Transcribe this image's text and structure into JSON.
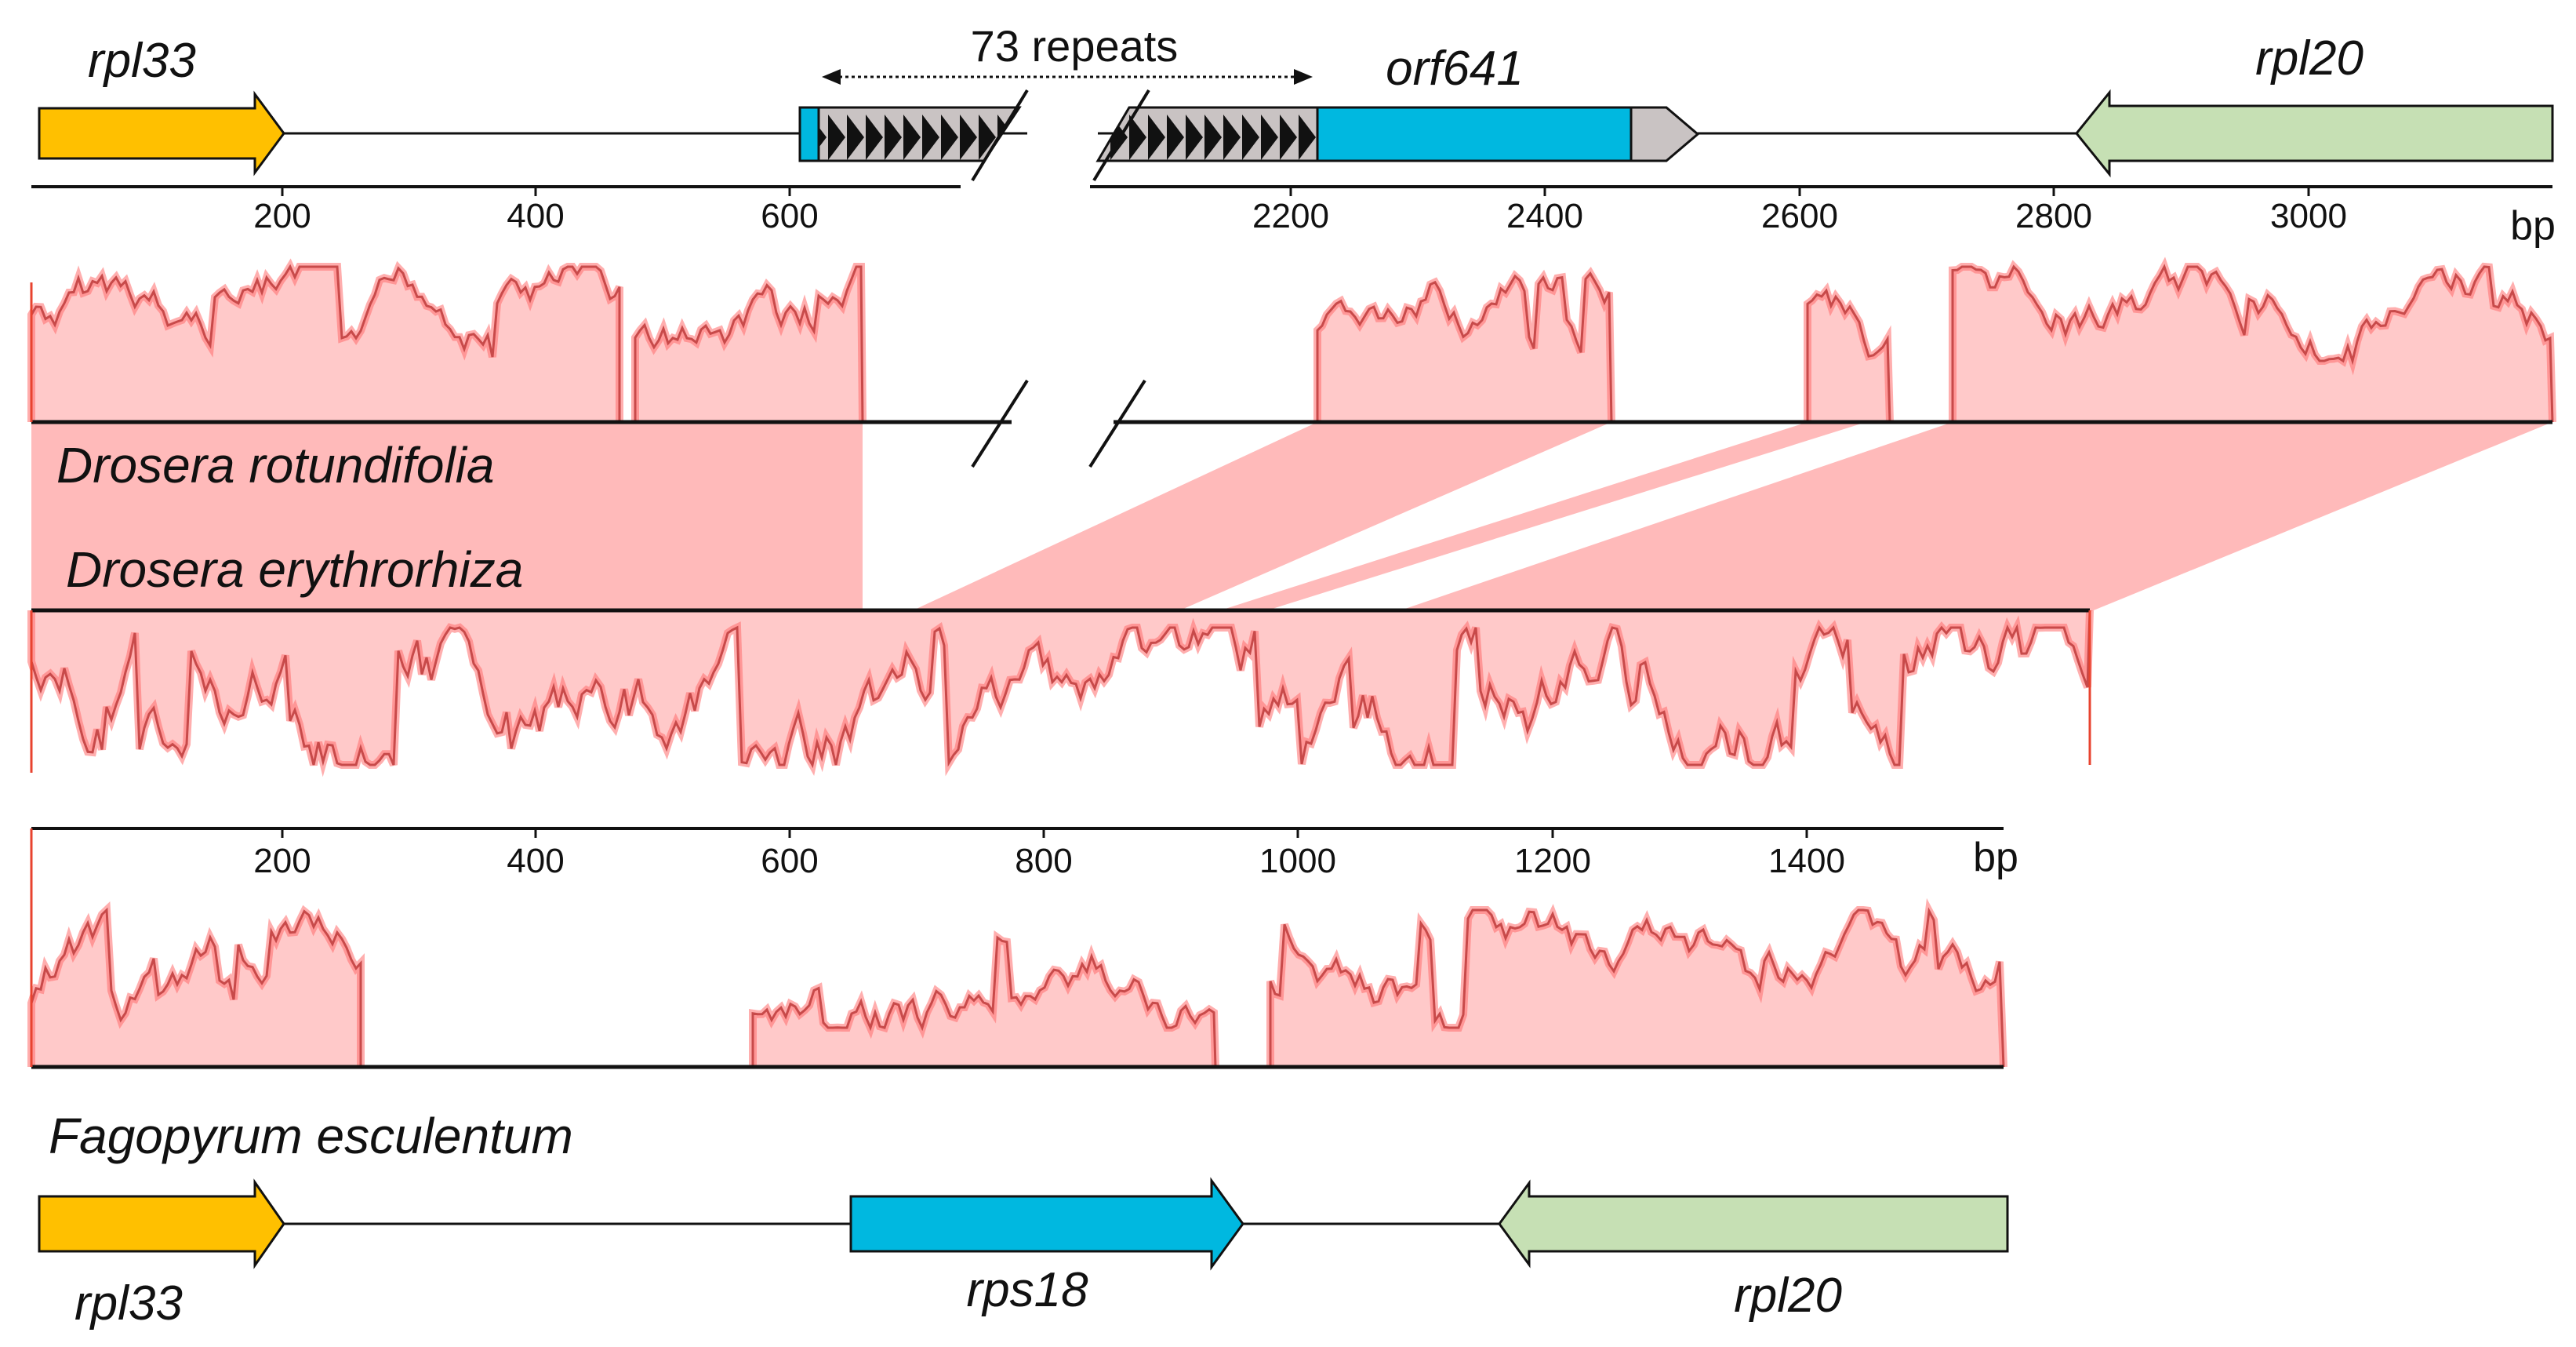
{
  "drosera_map": {
    "repeats_label": "73 repeats",
    "genes": [
      {
        "name": "rpl33",
        "start": 0,
        "end": 200,
        "direction": "right",
        "color": "#FFC000"
      },
      {
        "name": "orf641",
        "start": 2230,
        "end": 2470,
        "direction": "right",
        "color": "#00B8E0"
      },
      {
        "name": "rpl20",
        "start": 2830,
        "end": 3200,
        "direction": "left",
        "color": "#C6E0B4"
      }
    ],
    "ticks_left": [
      200,
      400,
      600
    ],
    "ticks_right": [
      2200,
      2400,
      2600,
      2800,
      3000
    ],
    "unit": "bp"
  },
  "species": [
    {
      "name": "Drosera rotundifolia"
    },
    {
      "name": "Drosera erythrorhiza"
    },
    {
      "name": "Fagopyrum esculentum"
    }
  ],
  "middle_axis": {
    "ticks": [
      200,
      400,
      600,
      800,
      1000,
      1200,
      1400
    ],
    "unit": "bp"
  },
  "fagopyrum_map": {
    "genes": [
      {
        "name": "rpl33",
        "start": 0,
        "end": 200,
        "direction": "right",
        "color": "#FFC000"
      },
      {
        "name": "rps18",
        "start": 640,
        "end": 950,
        "direction": "right",
        "color": "#00B8E0"
      },
      {
        "name": "rpl20",
        "start": 1170,
        "end": 1560,
        "direction": "left",
        "color": "#C6E0B4"
      }
    ]
  },
  "colors": {
    "conservation_fill": "#FFC9C9",
    "conservation_line": "#C84A4A",
    "conservation_high": "#FF6B6B",
    "synteny_band": "#FFBABA",
    "repeat_box": "#C9C3C3"
  }
}
